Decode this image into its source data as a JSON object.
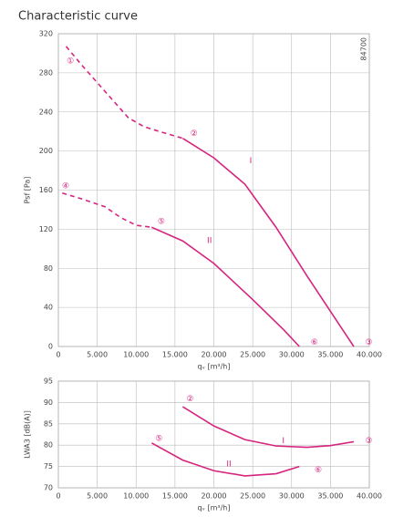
{
  "chart_data": [
    {
      "type": "line",
      "title": "Characteristic curve",
      "xlabel": "qᵥ [m³/h]",
      "ylabel": "Psf [Pa]",
      "code": "84700",
      "xlim": [
        0,
        40000
      ],
      "ylim": [
        0,
        320
      ],
      "xticks": [
        0,
        {
          "value": 5000,
          "label": "5.000"
        },
        {
          "value": 10000,
          "label": "10.000"
        },
        {
          "value": 15000,
          "label": "15.000"
        },
        {
          "value": 20000,
          "label": "20.000"
        },
        {
          "value": 25000,
          "label": "25.000"
        },
        {
          "value": 30000,
          "label": "30.000"
        },
        {
          "value": 35000,
          "label": "35.000"
        },
        {
          "value": 40000,
          "label": "40.000"
        }
      ],
      "yticks": [
        0,
        40,
        80,
        120,
        160,
        200,
        240,
        280,
        320
      ],
      "grid": true,
      "series": [
        {
          "color": "#d6247f",
          "dashed": true,
          "x": [
            1000,
            3000,
            5000,
            7000,
            9000,
            11000,
            13000,
            16000
          ],
          "values": [
            307,
            288,
            270,
            252,
            234,
            225,
            220,
            213
          ]
        },
        {
          "color": "#d6247f",
          "dashed": false,
          "x": [
            16000,
            20000,
            24000,
            28000,
            32000,
            35000,
            38000
          ],
          "values": [
            213,
            193,
            166,
            122,
            72,
            36,
            0
          ]
        },
        {
          "color": "#d6247f",
          "dashed": true,
          "x": [
            500,
            3000,
            6000,
            8000,
            10000,
            12000
          ],
          "values": [
            157,
            151,
            143,
            132,
            124,
            122
          ]
        },
        {
          "color": "#d6247f",
          "dashed": false,
          "x": [
            12000,
            16000,
            20000,
            25000,
            29000,
            31000
          ],
          "values": [
            122,
            108,
            85,
            48,
            17,
            0
          ]
        }
      ],
      "annotations": [
        {
          "text": "①",
          "x": 600,
          "y": 292
        },
        {
          "text": "②",
          "x": 16500,
          "y": 218
        },
        {
          "text": "③",
          "x": 39000,
          "y": 4
        },
        {
          "text": "④",
          "x": 0,
          "y": 164
        },
        {
          "text": "⑤",
          "x": 12300,
          "y": 128
        },
        {
          "text": "⑥",
          "x": 32000,
          "y": 4
        },
        {
          "text": "I",
          "x": 23800,
          "y": 190
        },
        {
          "text": "II",
          "x": 18500,
          "y": 108
        }
      ]
    },
    {
      "type": "line",
      "xlabel": "qᵥ [m³/h]",
      "ylabel": "LWA3 [dB(A)]",
      "xlim": [
        0,
        40000
      ],
      "ylim": [
        70,
        95
      ],
      "xticks": [
        0,
        {
          "value": 5000,
          "label": "5.000"
        },
        {
          "value": 10000,
          "label": "10.000"
        },
        {
          "value": 15000,
          "label": "15.000"
        },
        {
          "value": 20000,
          "label": "20.000"
        },
        {
          "value": 25000,
          "label": "25.000"
        },
        {
          "value": 30000,
          "label": "30.000"
        },
        {
          "value": 35000,
          "label": "35.000"
        },
        {
          "value": 40000,
          "label": "40.000"
        }
      ],
      "yticks": [
        70,
        75,
        80,
        85,
        90,
        95
      ],
      "grid": true,
      "series": [
        {
          "color": "#d6247f",
          "dashed": false,
          "x": [
            16000,
            20000,
            24000,
            28000,
            32000,
            35000,
            38000
          ],
          "values": [
            89,
            84.5,
            81.3,
            79.8,
            79.5,
            79.9,
            80.8
          ]
        },
        {
          "color": "#d6247f",
          "dashed": false,
          "x": [
            12000,
            16000,
            20000,
            24000,
            28000,
            31000
          ],
          "values": [
            80.5,
            76.5,
            74,
            72.8,
            73.3,
            75
          ]
        }
      ],
      "annotations": [
        {
          "text": "②",
          "x": 16000,
          "y": 90.8
        },
        {
          "text": "③",
          "x": 39000,
          "y": 81
        },
        {
          "text": "⑤",
          "x": 12000,
          "y": 81.5
        },
        {
          "text": "⑥",
          "x": 32500,
          "y": 74.2
        },
        {
          "text": "I",
          "x": 28000,
          "y": 81
        },
        {
          "text": "II",
          "x": 21000,
          "y": 75.6
        }
      ]
    }
  ]
}
